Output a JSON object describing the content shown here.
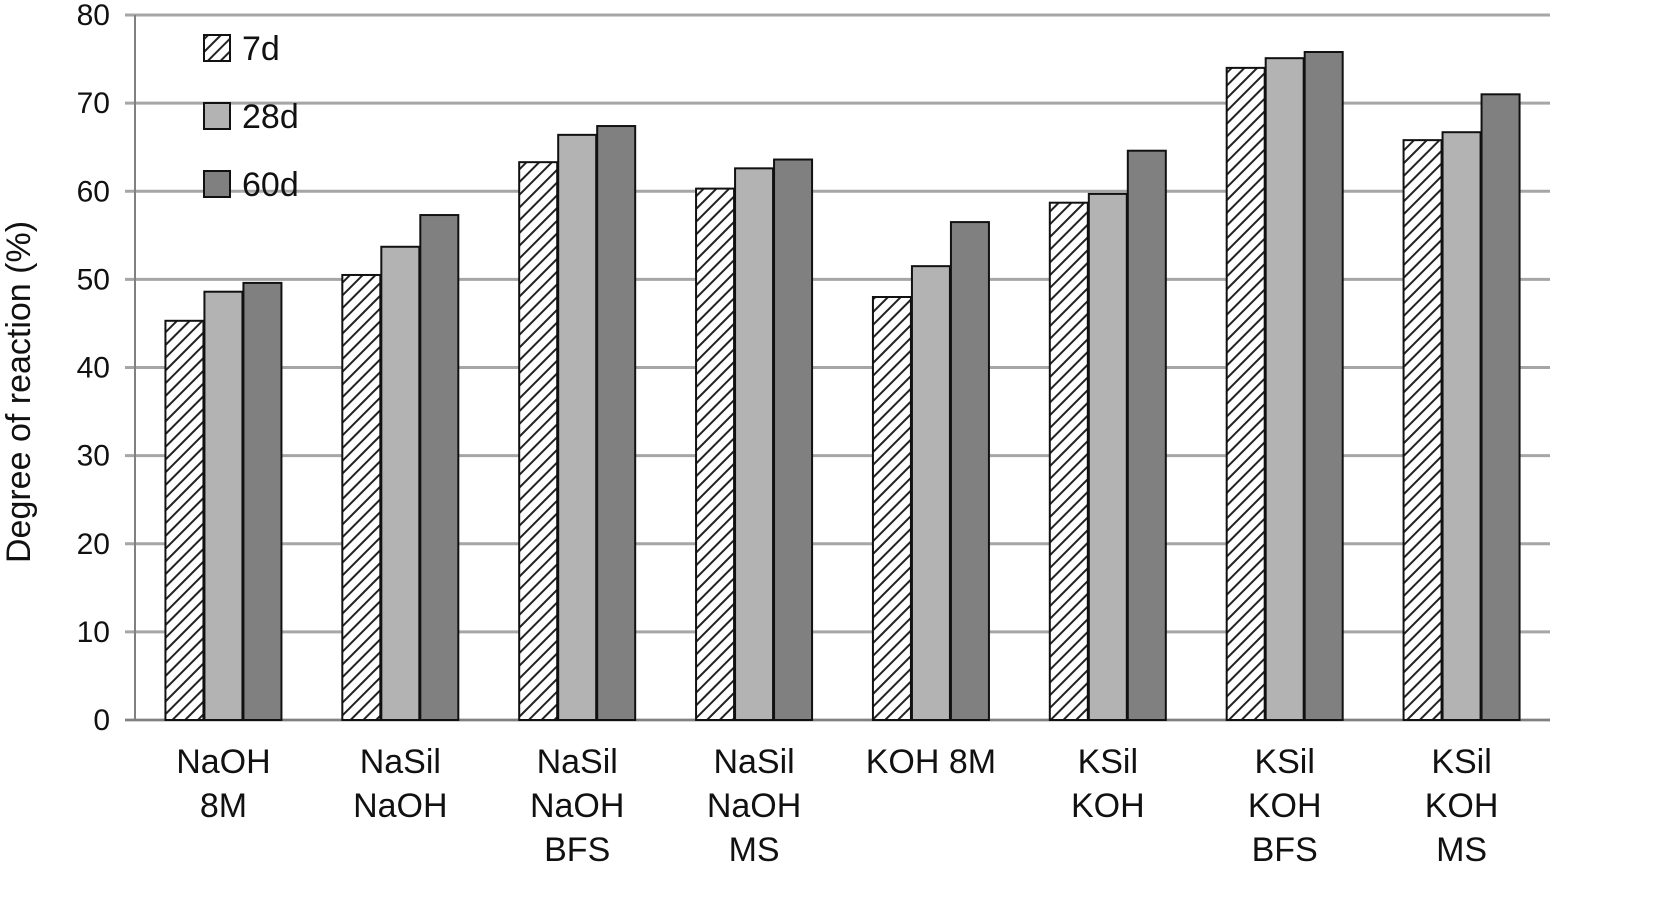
{
  "chart_data": {
    "type": "bar",
    "title": "",
    "xlabel": "",
    "ylabel": "Degree of reaction (%)",
    "ylim": [
      0,
      80
    ],
    "yticks": [
      0,
      10,
      20,
      30,
      40,
      50,
      60,
      70,
      80
    ],
    "grid": "horizontal",
    "legend_position": "top-left",
    "categories": [
      [
        "NaOH",
        "8M"
      ],
      [
        "NaSil",
        "NaOH"
      ],
      [
        "NaSil",
        "NaOH",
        "BFS"
      ],
      [
        "NaSil",
        "NaOH",
        "MS"
      ],
      [
        "KOH 8M"
      ],
      [
        "KSil",
        "KOH"
      ],
      [
        "KSil",
        "KOH",
        "BFS"
      ],
      [
        "KSil",
        "KOH",
        "MS"
      ]
    ],
    "series": [
      {
        "name": "7d",
        "style": "hatched",
        "color": "#ffffff",
        "values": [
          45.3,
          50.5,
          63.3,
          60.3,
          48.0,
          58.7,
          74.0,
          65.8
        ]
      },
      {
        "name": "28d",
        "style": "solid",
        "color": "#b3b3b3",
        "values": [
          48.6,
          53.7,
          66.4,
          62.6,
          51.5,
          59.7,
          75.1,
          66.7
        ]
      },
      {
        "name": "60d",
        "style": "solid",
        "color": "#808080",
        "values": [
          49.6,
          57.3,
          67.4,
          63.6,
          56.5,
          64.6,
          75.8,
          71.0
        ]
      }
    ]
  }
}
